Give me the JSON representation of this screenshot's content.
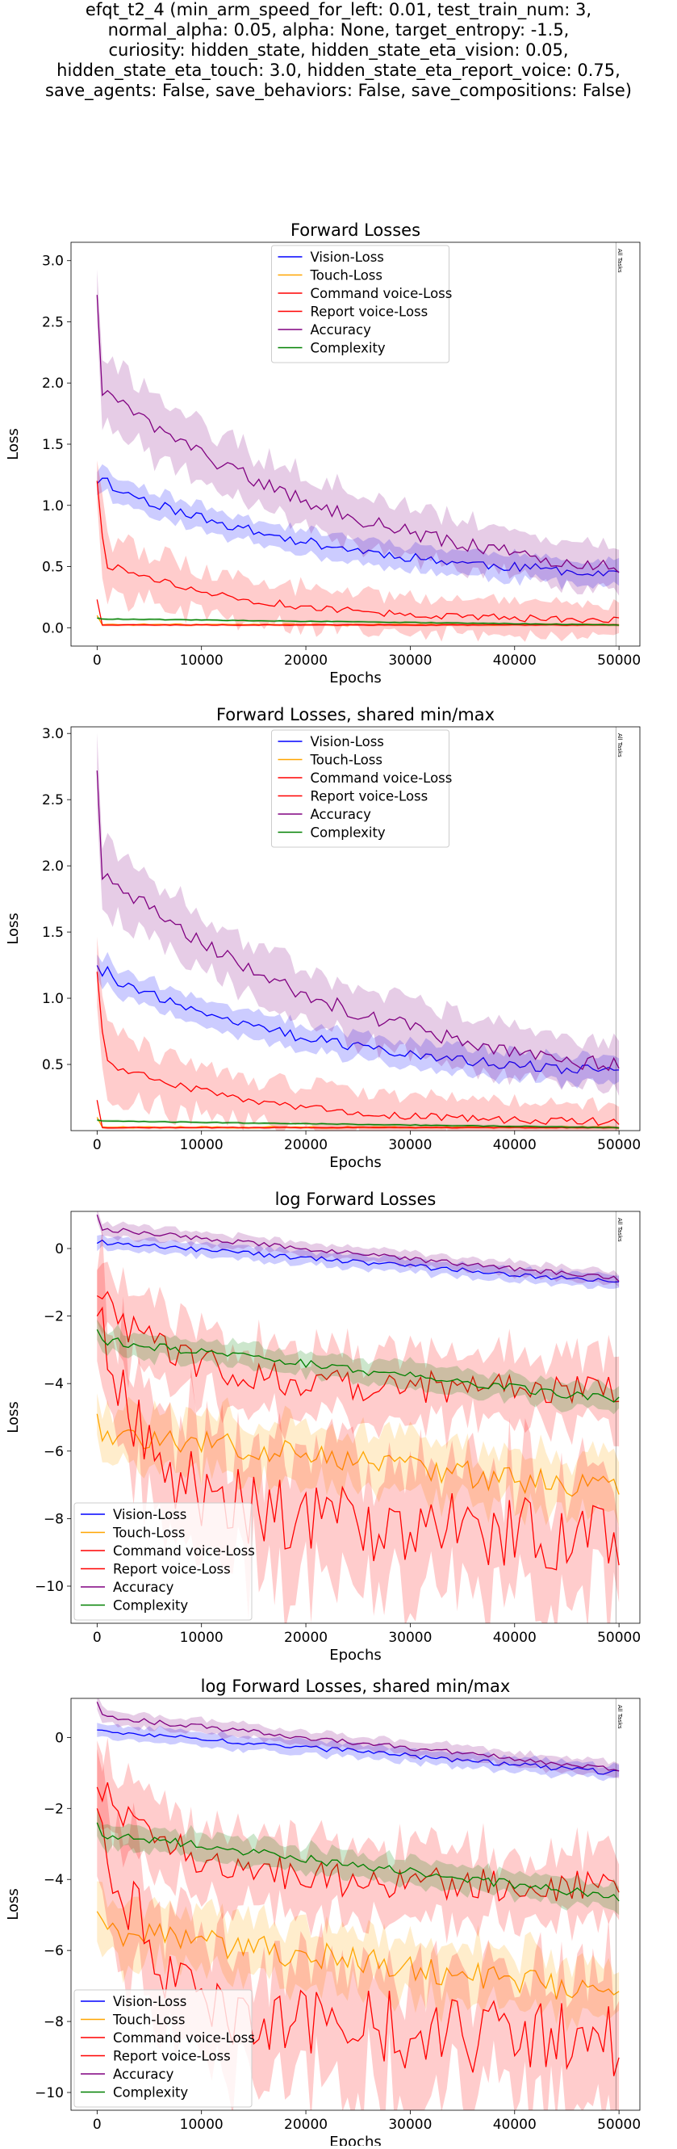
{
  "suptitle": [
    "efqt_t2_4 (min_arm_speed_for_left: 0.01, test_train_num: 3,",
    "normal_alpha: 0.05, alpha: None, target_entropy: -1.5,",
    "curiosity: hidden_state, hidden_state_eta_vision: 0.05,",
    "hidden_state_eta_touch: 3.0, hidden_state_eta_report_voice: 0.75,",
    "save_agents: False, save_behaviors: False, save_compositions: False)"
  ],
  "colors": {
    "vision": "#0000ff",
    "touch": "#ffa500",
    "command": "#ff0000",
    "report": "#ff0000",
    "accuracy": "#800080",
    "complexity": "#008000",
    "vline": "#000000"
  },
  "vline_label": "All Tasks",
  "chart_data": [
    {
      "type": "line",
      "title": "Forward Losses",
      "xlabel": "Epochs",
      "ylabel": "Loss",
      "xlim": [
        -2500,
        52000
      ],
      "ylim": [
        -0.15,
        3.15
      ],
      "xticks": [
        0,
        10000,
        20000,
        30000,
        40000,
        50000
      ],
      "yticks": [
        0.0,
        0.5,
        1.0,
        1.5,
        2.0,
        2.5,
        3.0
      ],
      "ytick_labels": [
        "0.0",
        "0.5",
        "1.0",
        "1.5",
        "2.0",
        "2.5",
        "3.0"
      ],
      "vline_x": 49700,
      "log": false,
      "legend_loc": "upper center",
      "legend": [
        "Vision-Loss",
        "Touch-Loss",
        "Command voice-Loss",
        "Report voice-Loss",
        "Accuracy",
        "Complexity"
      ]
    },
    {
      "type": "line",
      "title": "Forward Losses, shared min/max",
      "xlabel": "Epochs",
      "ylabel": "Loss",
      "xlim": [
        -2500,
        52000
      ],
      "ylim": [
        0.0,
        3.05
      ],
      "xticks": [
        0,
        10000,
        20000,
        30000,
        40000,
        50000
      ],
      "yticks": [
        0.5,
        1.0,
        1.5,
        2.0,
        2.5,
        3.0
      ],
      "ytick_labels": [
        "0.5",
        "1.0",
        "1.5",
        "2.0",
        "2.5",
        "3.0"
      ],
      "vline_x": 49700,
      "log": false,
      "legend_loc": "upper center",
      "legend": [
        "Vision-Loss",
        "Touch-Loss",
        "Command voice-Loss",
        "Report voice-Loss",
        "Accuracy",
        "Complexity"
      ]
    },
    {
      "type": "line",
      "title": "log Forward Losses",
      "xlabel": "Epochs",
      "ylabel": "Loss",
      "xlim": [
        -2500,
        52000
      ],
      "ylim": [
        -11.1,
        1.1
      ],
      "xticks": [
        0,
        10000,
        20000,
        30000,
        40000,
        50000
      ],
      "yticks": [
        0,
        -2,
        -4,
        -6,
        -8,
        -10
      ],
      "ytick_labels": [
        "0",
        "−2",
        "−4",
        "−6",
        "−8",
        "−10"
      ],
      "vline_x": 49700,
      "log": true,
      "legend_loc": "lower left",
      "legend": [
        "Vision-Loss",
        "Touch-Loss",
        "Command voice-Loss",
        "Report voice-Loss",
        "Accuracy",
        "Complexity"
      ]
    },
    {
      "type": "line",
      "title": "log Forward Losses, shared min/max",
      "xlabel": "Epochs",
      "ylabel": "Loss",
      "xlim": [
        -2500,
        52000
      ],
      "ylim": [
        -10.5,
        1.1
      ],
      "xticks": [
        0,
        10000,
        20000,
        30000,
        40000,
        50000
      ],
      "yticks": [
        0,
        -2,
        -4,
        -6,
        -8,
        -10
      ],
      "ytick_labels": [
        "0",
        "−2",
        "−4",
        "−6",
        "−8",
        "−10"
      ],
      "vline_x": 49700,
      "log": true,
      "legend_loc": "lower left",
      "legend": [
        "Vision-Loss",
        "Touch-Loss",
        "Command voice-Loss",
        "Report voice-Loss",
        "Accuracy",
        "Complexity"
      ]
    }
  ]
}
